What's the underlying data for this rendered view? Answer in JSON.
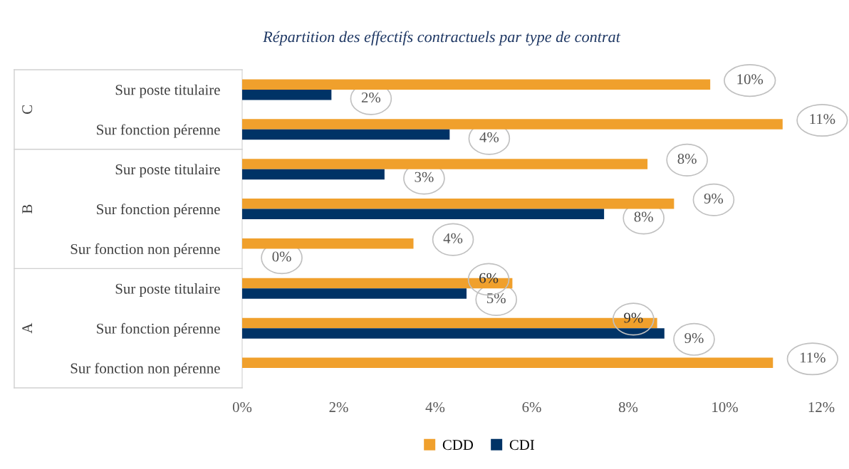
{
  "chart_data": {
    "type": "bar",
    "orientation": "horizontal",
    "title": "Répartition des effectifs contractuels par type de contrat",
    "categories": [
      "Sur poste titulaire",
      "Sur fonction pérenne",
      "Sur poste titulaire",
      "Sur fonction pérenne",
      "Sur fonction non pérenne",
      "Sur poste titulaire",
      "Sur fonction pérenne",
      "Sur fonction non pérenne"
    ],
    "annotations": [
      "C",
      "B",
      "A"
    ],
    "series": [
      {
        "name": "CDD",
        "color": "#f0a02c",
        "values": [
          9.7,
          11.2,
          8.4,
          8.95,
          3.55,
          5.6,
          8.6,
          11.0
        ],
        "value_labels": [
          "10%",
          "11%",
          "8%",
          "9%",
          "4%",
          "6%",
          "9%",
          "11%"
        ]
      },
      {
        "name": "CDI",
        "color": "#003366",
        "values": [
          1.85,
          4.3,
          2.95,
          7.5,
          0,
          4.65,
          8.75,
          null
        ],
        "value_labels": [
          "2%",
          "4%",
          "3%",
          "8%",
          "0%",
          "5%",
          "9%",
          null
        ]
      }
    ],
    "xlim": [
      0,
      12
    ],
    "xticks": [
      {
        "value": 0,
        "label": "0%"
      },
      {
        "value": 2,
        "label": "2%"
      },
      {
        "value": 4,
        "label": "4%"
      },
      {
        "value": 6,
        "label": "6%"
      },
      {
        "value": 8,
        "label": "8%"
      },
      {
        "value": 10,
        "label": "10%"
      },
      {
        "value": 12,
        "label": "12%"
      }
    ],
    "grid": false,
    "legend": "bottom"
  }
}
